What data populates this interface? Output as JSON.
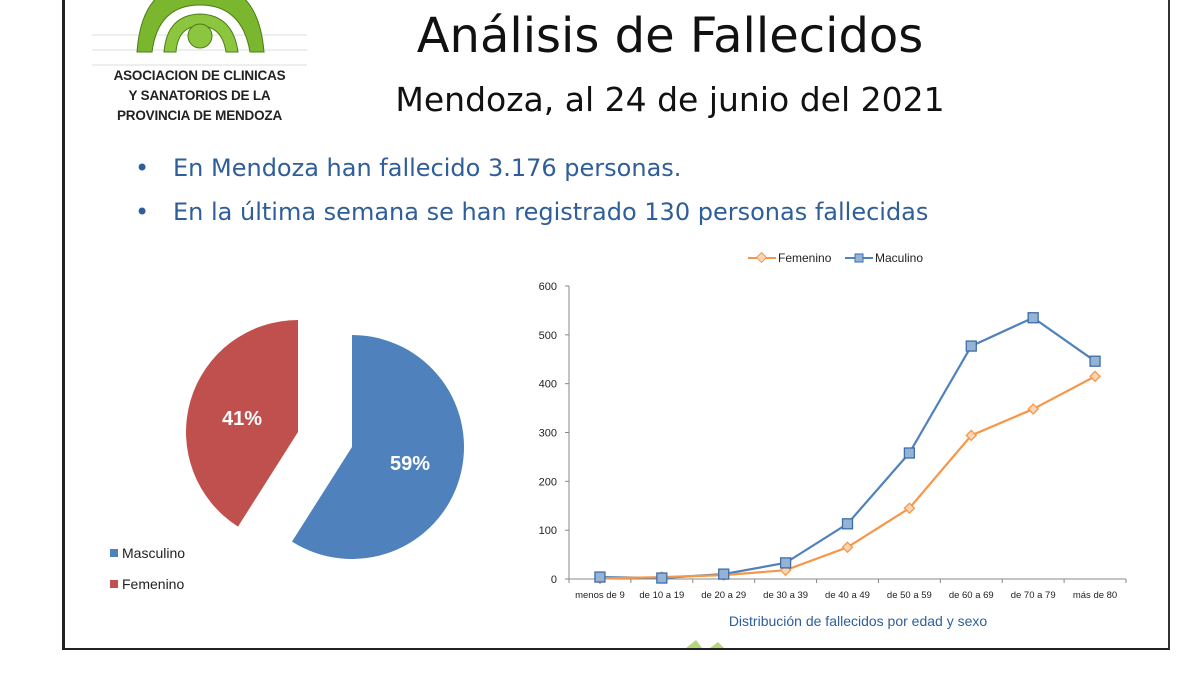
{
  "logo": {
    "lines": [
      "ASOCIACION DE CLINICAS",
      "Y SANATORIOS DE LA",
      "PROVINCIA DE MENDOZA"
    ]
  },
  "header": {
    "title": "Análisis de Fallecidos",
    "subtitle": "Mendoza, al 24 de junio del 2021"
  },
  "bullets": [
    "En Mendoza han fallecido 3.176 personas.",
    "En la última semana se han registrado 130 personas fallecidas"
  ],
  "colors": {
    "masculino_pie": "#4f81bd",
    "femenino_pie": "#c0504d",
    "masculino_line": "#4f81bd",
    "femenino_line": "#f79646",
    "text_blue": "#2f5e9a"
  },
  "chart_data": [
    {
      "type": "pie",
      "slices": [
        {
          "label": "Masculino",
          "value": 59,
          "display": "59%"
        },
        {
          "label": "Femenino",
          "value": 41,
          "display": "41%"
        }
      ],
      "legend": [
        "Masculino",
        "Femenino"
      ],
      "legend_position": "bottom-left"
    },
    {
      "type": "line",
      "title": "Distribución de fallecidos por edad y sexo",
      "categories": [
        "menos de 9",
        "de 10 a 19",
        "de 20 a 29",
        "de 30 a 39",
        "de 40 a 49",
        "de 50 a 59",
        "de 60 a 69",
        "de 70 a 79",
        "más de 80"
      ],
      "series": [
        {
          "name": "Femenino",
          "values": [
            1,
            4,
            8,
            18,
            65,
            145,
            294,
            348,
            415
          ]
        },
        {
          "name": "Maculino",
          "values": [
            4,
            2,
            10,
            33,
            113,
            258,
            477,
            535,
            446
          ]
        }
      ],
      "ylim": [
        0,
        600
      ],
      "yticks": [
        0,
        100,
        200,
        300,
        400,
        500,
        600
      ],
      "legend_position": "top",
      "grid": false
    }
  ]
}
